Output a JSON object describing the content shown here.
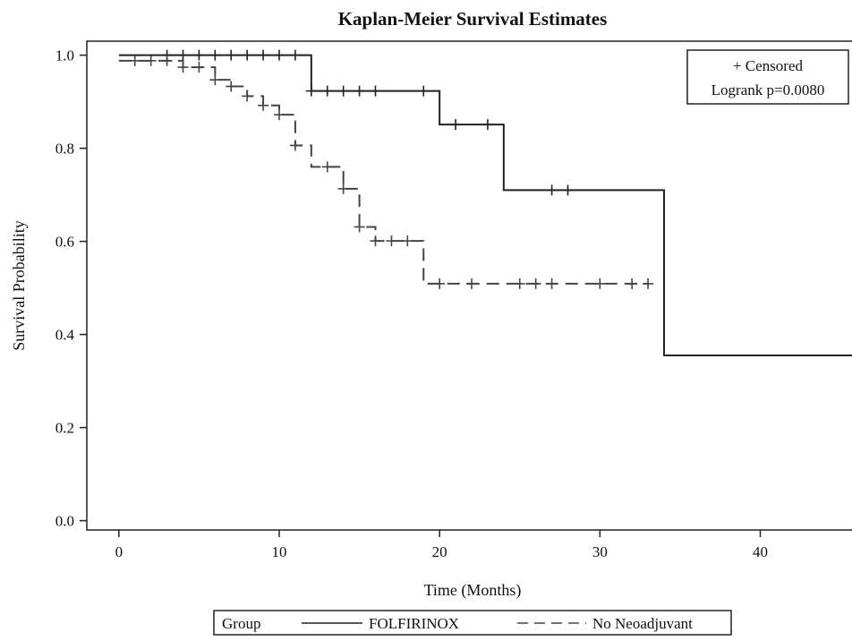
{
  "chart_data": {
    "type": "line",
    "chart_kind": "kaplan-meier",
    "title": "Kaplan-Meier Survival Estimates",
    "xlabel": "Time (Months)",
    "ylabel": "Survival Probability",
    "xlim": [
      -2,
      46
    ],
    "ylim": [
      -0.02,
      1.03
    ],
    "x_ticks": [
      0,
      10,
      20,
      30,
      40
    ],
    "y_ticks": [
      0.0,
      0.2,
      0.4,
      0.6,
      0.8,
      1.0
    ],
    "y_tick_labels": [
      "0.0",
      "0.2",
      "0.4",
      "0.6",
      "0.8",
      "1.0"
    ],
    "grid": false,
    "annotation": {
      "censored_label": "+ Censored",
      "logrank_label": "Logrank p=0.0080",
      "position": "top-right"
    },
    "legend": {
      "title": "Group",
      "position": "bottom"
    },
    "series": [
      {
        "name": "FOLFIRINOX",
        "line_style": "solid",
        "color": "#222222",
        "steps": [
          [
            0,
            1.0
          ],
          [
            12,
            0.923
          ],
          [
            20,
            0.851
          ],
          [
            24,
            0.71
          ],
          [
            34,
            0.355
          ]
        ],
        "end_x": 46,
        "censored": [
          [
            3,
            1.0
          ],
          [
            4,
            1.0
          ],
          [
            5,
            1.0
          ],
          [
            6,
            1.0
          ],
          [
            7,
            1.0
          ],
          [
            8,
            1.0
          ],
          [
            9,
            1.0
          ],
          [
            10,
            1.0
          ],
          [
            11,
            1.0
          ],
          [
            12,
            0.923
          ],
          [
            13,
            0.923
          ],
          [
            14,
            0.923
          ],
          [
            15,
            0.923
          ],
          [
            16,
            0.923
          ],
          [
            19,
            0.923
          ],
          [
            21,
            0.851
          ],
          [
            23,
            0.851
          ],
          [
            27,
            0.71
          ],
          [
            28,
            0.71
          ],
          [
            46,
            0.355
          ]
        ]
      },
      {
        "name": "No Neoadjuvant",
        "line_style": "dashed",
        "color": "#444444",
        "steps": [
          [
            0,
            0.988
          ],
          [
            4,
            0.974
          ],
          [
            6,
            0.947
          ],
          [
            7,
            0.933
          ],
          [
            8,
            0.912
          ],
          [
            9,
            0.892
          ],
          [
            10,
            0.872
          ],
          [
            11,
            0.806
          ],
          [
            12,
            0.76
          ],
          [
            14,
            0.713
          ],
          [
            15,
            0.631
          ],
          [
            16,
            0.601
          ],
          [
            19,
            0.509
          ]
        ],
        "end_x": 33,
        "censored": [
          [
            1,
            0.988
          ],
          [
            2,
            0.988
          ],
          [
            3,
            0.988
          ],
          [
            4,
            0.974
          ],
          [
            5,
            0.974
          ],
          [
            6,
            0.947
          ],
          [
            7,
            0.933
          ],
          [
            8,
            0.912
          ],
          [
            9,
            0.892
          ],
          [
            10,
            0.872
          ],
          [
            11,
            0.806
          ],
          [
            13,
            0.76
          ],
          [
            14,
            0.713
          ],
          [
            15,
            0.631
          ],
          [
            16,
            0.601
          ],
          [
            17,
            0.601
          ],
          [
            18,
            0.601
          ],
          [
            20,
            0.509
          ],
          [
            22,
            0.509
          ],
          [
            25,
            0.509
          ],
          [
            26,
            0.509
          ],
          [
            27,
            0.509
          ],
          [
            30,
            0.509
          ],
          [
            32,
            0.509
          ],
          [
            33,
            0.509
          ]
        ]
      }
    ]
  }
}
